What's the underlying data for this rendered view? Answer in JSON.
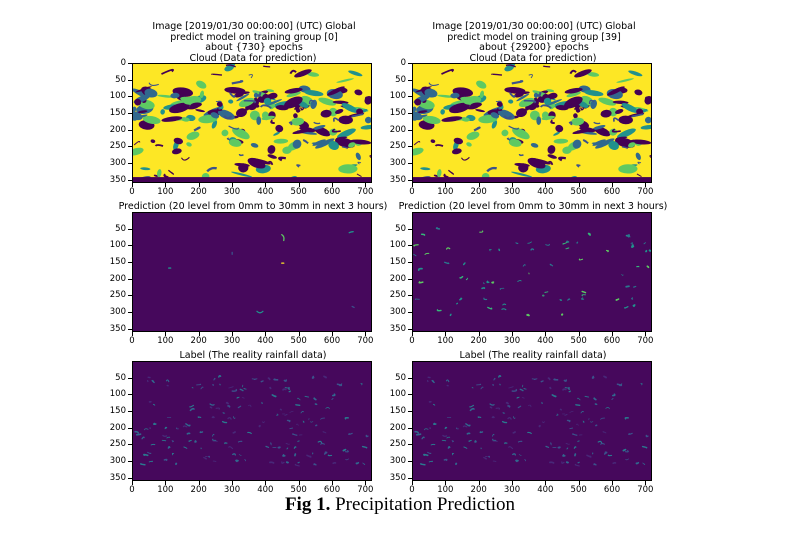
{
  "columns": [
    {
      "title_lines": [
        "Image [2019/01/30 00:00:00] (UTC) Global",
        "predict model on training group [0]",
        "about {730} epochs"
      ]
    },
    {
      "title_lines": [
        "Image [2019/01/30 00:00:00] (UTC) Global",
        "predict model on training group [39]",
        "about {29200} epochs"
      ]
    }
  ],
  "panels": {
    "cloud": "Cloud (Data for prediction)",
    "prediction": "Prediction (20 level from 0mm to 30mm in next 3 hours)",
    "label": "Label (The reality rainfall data)"
  },
  "axes": {
    "row1_yticks": [
      "0",
      "50",
      "100",
      "150",
      "200",
      "250",
      "300",
      "350"
    ],
    "other_yticks": [
      "50",
      "100",
      "150",
      "200",
      "250",
      "300",
      "350"
    ],
    "xticks": [
      "0",
      "100",
      "200",
      "300",
      "400",
      "500",
      "600",
      "700"
    ],
    "xlim": [
      0,
      720
    ],
    "ylim": [
      0,
      360
    ]
  },
  "colors": {
    "viridis_dark": "#440154",
    "viridis_bg": "#46085c",
    "viridis_teal": "#21918c",
    "viridis_green": "#5ec962",
    "viridis_yellow": "#fde725"
  },
  "caption": {
    "bold": "Fig 1.",
    "rest": " Precipitation Prediction"
  }
}
